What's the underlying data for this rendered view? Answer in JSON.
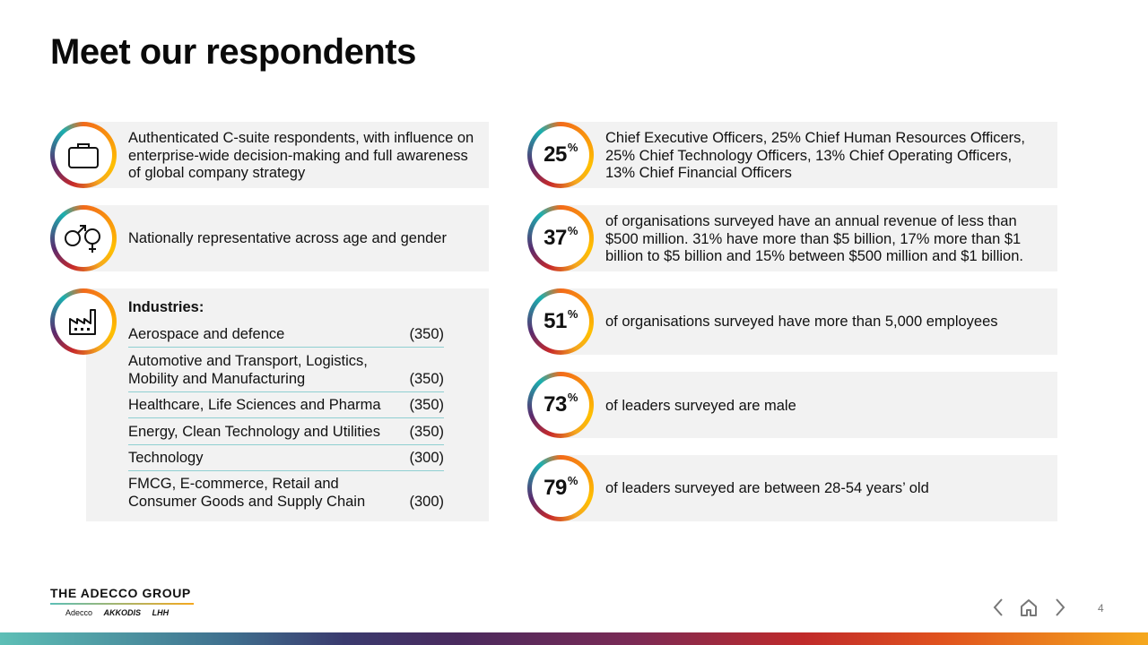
{
  "title": "Meet our respondents",
  "left_cards": {
    "csuite": {
      "icon": "briefcase-icon",
      "text": "Authenticated C-suite respondents, with influence on enterprise-wide decision-making and full awareness of global company strategy"
    },
    "gender": {
      "icon": "gender-icon",
      "text": "Nationally representative across age and gender"
    },
    "industries": {
      "icon": "factory-icon",
      "heading": "Industries:",
      "rows": [
        {
          "name": "Aerospace and defence",
          "count": "(350)"
        },
        {
          "name": "Automotive and Transport, Logistics, Mobility and  Manufacturing",
          "count": "(350)"
        },
        {
          "name": "Healthcare, Life Sciences and Pharma",
          "count": "(350)"
        },
        {
          "name": "Energy, Clean Technology and Utilities",
          "count": "(350)"
        },
        {
          "name": "Technology",
          "count": "(300)"
        },
        {
          "name": "FMCG, E-commerce, Retail and Consumer Goods and Supply Chain",
          "count": "(300)"
        }
      ]
    }
  },
  "stats": [
    {
      "value": "25",
      "unit": "%",
      "text": "Chief Executive Officers, 25% Chief Human Resources Officers, 25% Chief Technology Officers, 13% Chief Operating Officers, 13% Chief Financial Officers"
    },
    {
      "value": "37",
      "unit": "%",
      "text": "of organisations surveyed have an annual revenue of less than $500 million. 31% have more than $5 billion, 17% more than $1 billion to $5 billion and 15% between $500 million and $1 billion."
    },
    {
      "value": "51",
      "unit": "%",
      "text": "of organisations surveyed have more than 5,000 employees"
    },
    {
      "value": "73",
      "unit": "%",
      "text": "of leaders surveyed are male"
    },
    {
      "value": "79",
      "unit": "%",
      "text": "of leaders surveyed are between 28-54 years’ old"
    }
  ],
  "footer": {
    "brand": "THE ADECCO GROUP",
    "sub_brands": [
      "Adecco",
      "AKKODIS",
      "LHH"
    ],
    "page_number": "4"
  },
  "colors": {
    "card_bg": "#f2f2f2",
    "divider": "#8fcfd1",
    "ring_accent": "#f26a1b"
  }
}
